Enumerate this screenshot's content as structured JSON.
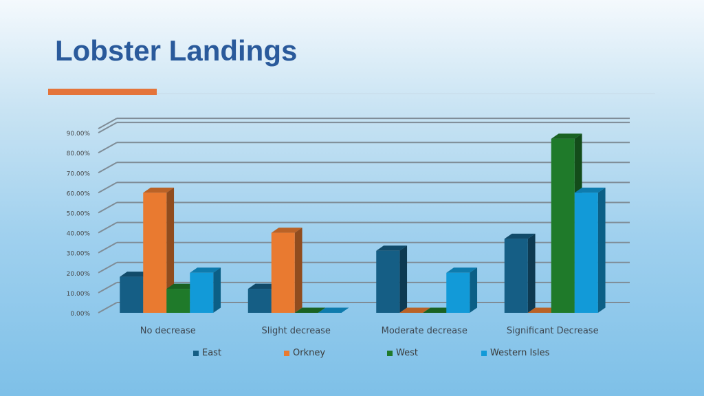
{
  "title": "Lobster Landings",
  "chart_data": {
    "type": "bar",
    "categories": [
      "No decrease",
      "Slight decrease",
      "Moderate decrease",
      "Significant Decrease"
    ],
    "series": [
      {
        "name": "East",
        "values": [
          18,
          12,
          31,
          37
        ],
        "color": "#155e85"
      },
      {
        "name": "Orkney",
        "values": [
          60,
          40,
          0,
          0
        ],
        "color": "#e97a30"
      },
      {
        "name": "West",
        "values": [
          12,
          0,
          0,
          87
        ],
        "color": "#1f7a2a"
      },
      {
        "name": "Western Isles",
        "values": [
          20,
          0,
          20,
          60
        ],
        "color": "#129ad8"
      }
    ],
    "y_ticks": [
      "0.00%",
      "10.00%",
      "20.00%",
      "30.00%",
      "40.00%",
      "50.00%",
      "60.00%",
      "70.00%",
      "80.00%",
      "90.00%"
    ],
    "ylim": [
      0,
      90
    ],
    "y_format": "percent",
    "style": "3d-clustered-column",
    "grid": true,
    "legend_position": "bottom"
  }
}
